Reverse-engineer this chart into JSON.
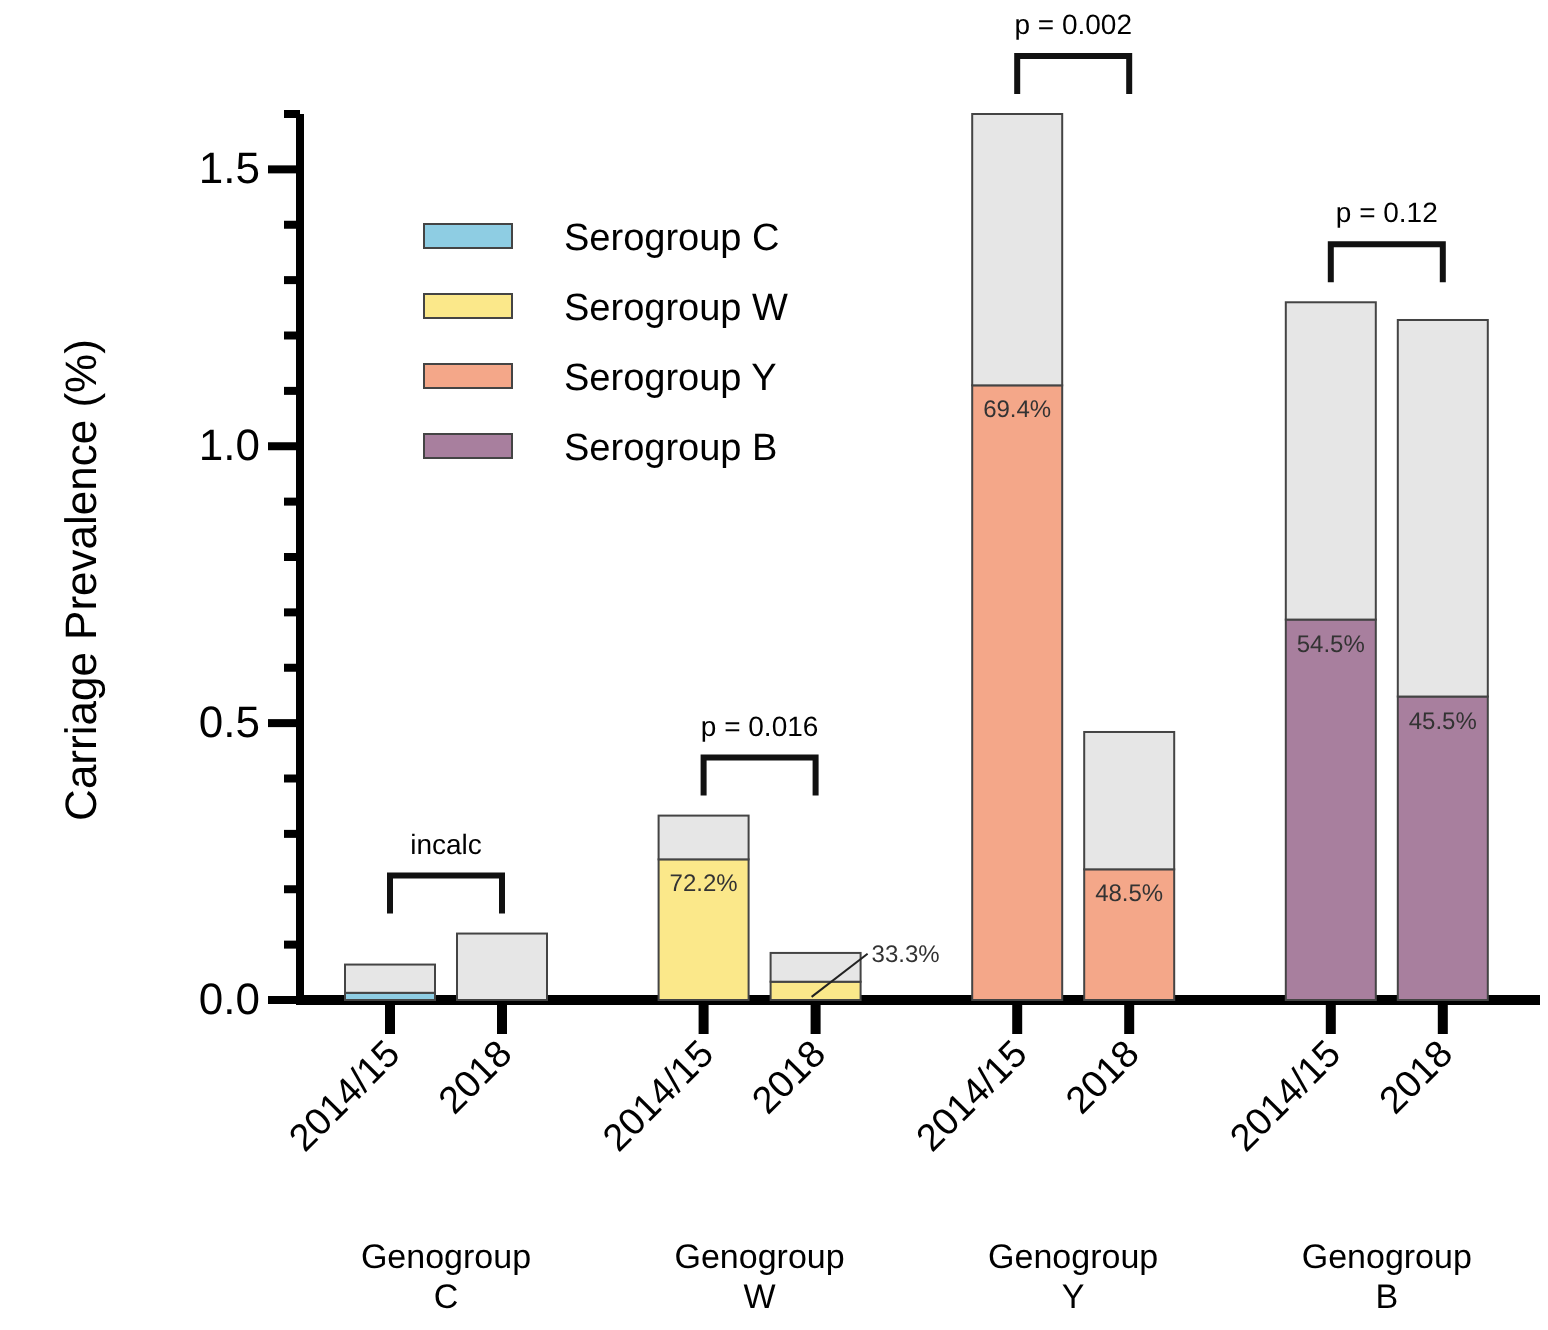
{
  "chart_data": {
    "type": "bar",
    "stacked": true,
    "ylabel": "Carriage Prevalence (%)",
    "categories": [
      "2014/15",
      "2018",
      "2014/15",
      "2018",
      "2014/15",
      "2018",
      "2014/15",
      "2018"
    ],
    "series": [
      {
        "name": "Serogroup C",
        "color": "#8ecde3",
        "values": [
          0.013,
          0,
          0,
          0,
          0,
          0,
          0,
          0
        ]
      },
      {
        "name": "Serogroup W",
        "color": "#fbe88a",
        "values": [
          0,
          0,
          0.254,
          0.033,
          0,
          0,
          0,
          0
        ]
      },
      {
        "name": "Serogroup Y",
        "color": "#f4a789",
        "values": [
          0,
          0,
          0,
          0,
          1.11,
          0.236,
          0,
          0
        ]
      },
      {
        "name": "Serogroup B",
        "color": "#a87f9e",
        "values": [
          0,
          0,
          0,
          0,
          0,
          0,
          0.687,
          0.548
        ]
      },
      {
        "color": "#e6e6e6",
        "values": [
          0.051,
          0.12,
          0.079,
          0.052,
          0.49,
          0.248,
          0.573,
          0.68
        ]
      }
    ],
    "ylim": [
      0,
      1.6
    ],
    "yticks": [
      {
        "value": 0,
        "label": "0.0"
      },
      {
        "value": 0.1,
        "label": null
      },
      {
        "value": 0.2,
        "label": null
      },
      {
        "value": 0.3,
        "label": null
      },
      {
        "value": 0.4,
        "label": null
      },
      {
        "value": 0.5,
        "label": "0.5"
      },
      {
        "value": 0.6,
        "label": null
      },
      {
        "value": 0.7,
        "label": null
      },
      {
        "value": 0.8,
        "label": null
      },
      {
        "value": 0.9,
        "label": null
      },
      {
        "value": 1,
        "label": "1.0"
      },
      {
        "value": 1.1,
        "label": null
      },
      {
        "value": 1.2,
        "label": null
      },
      {
        "value": 1.3,
        "label": null
      },
      {
        "value": 1.4,
        "label": null
      },
      {
        "value": 1.5,
        "label": "1.5"
      },
      {
        "value": 1.6,
        "label": null
      }
    ],
    "legend": "top left",
    "grid": false,
    "annotations": [
      "Genogroup\nC",
      "Genogroup\nW",
      "Genogroup\nY",
      "Genogroup\nB",
      "incalc",
      "p = 0.016",
      "p = 0.002",
      "p = 0.12",
      {
        "text": "72.2%",
        "y": 0.254
      },
      "33.3%",
      {
        "text": "69.4%",
        "y": 1.11
      },
      {
        "text": "48.5%",
        "y": 0.236
      },
      {
        "text": "54.5%",
        "y": 0.687
      },
      {
        "text": "45.5%",
        "y": 0.548
      }
    ]
  }
}
